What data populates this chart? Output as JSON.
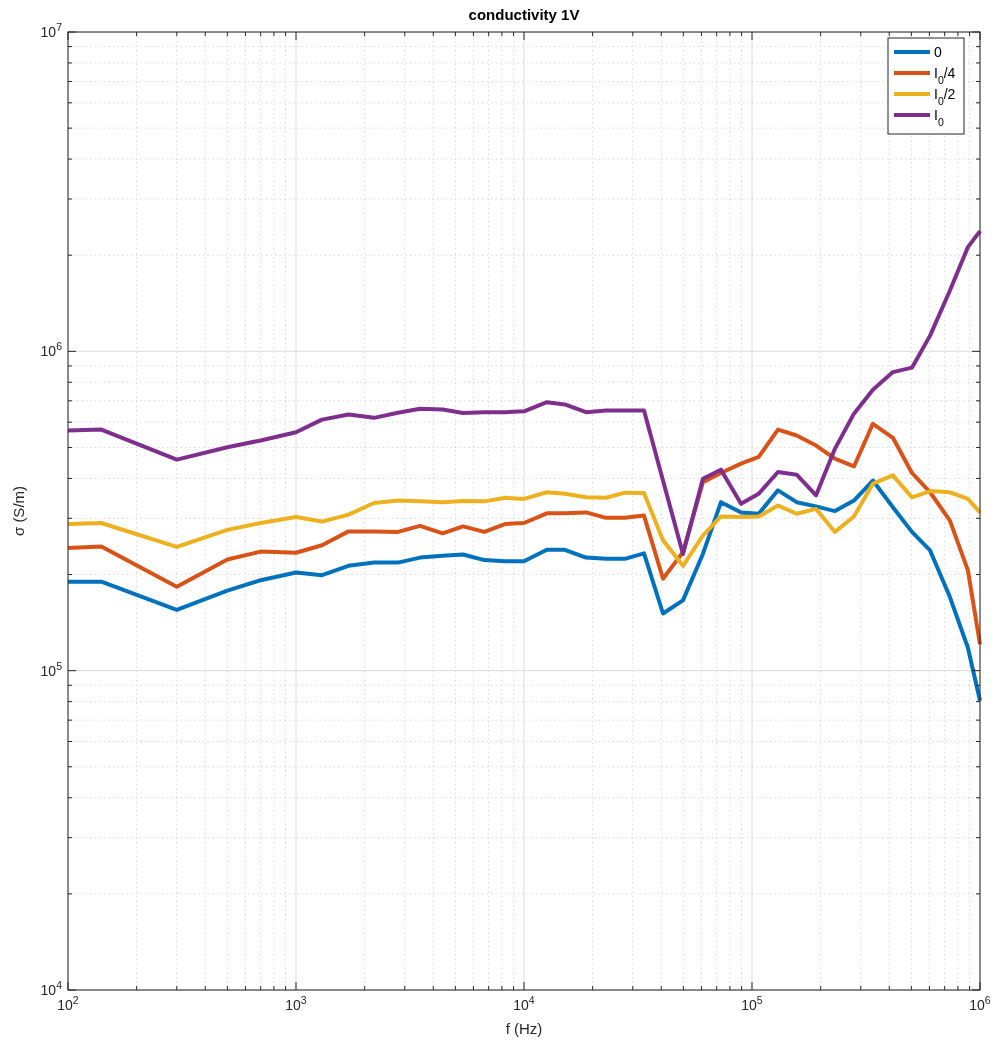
{
  "chart_data": {
    "type": "line",
    "title": "conductivity 1V",
    "xlabel": "f (Hz)",
    "ylabel": "σ (S/m)",
    "log": "xy",
    "grid": true,
    "legend": "top right",
    "line_style": "solid",
    "xlim": [
      100,
      1000000
    ],
    "ylim": [
      10000,
      10000000
    ],
    "xticks": [
      {
        "value": 100,
        "label": "10$^{2}$"
      },
      {
        "value": 200,
        "label": null
      },
      {
        "value": 300,
        "label": null
      },
      {
        "value": 400,
        "label": null
      },
      {
        "value": 500,
        "label": null
      },
      {
        "value": 600,
        "label": null
      },
      {
        "value": 700,
        "label": null
      },
      {
        "value": 800,
        "label": null
      },
      {
        "value": 900,
        "label": null
      },
      {
        "value": 1000,
        "label": "10$^{3}$"
      },
      {
        "value": 2000,
        "label": null
      },
      {
        "value": 3000,
        "label": null
      },
      {
        "value": 4000,
        "label": null
      },
      {
        "value": 5000,
        "label": null
      },
      {
        "value": 6000,
        "label": null
      },
      {
        "value": 7000,
        "label": null
      },
      {
        "value": 8000,
        "label": null
      },
      {
        "value": 9000,
        "label": null
      },
      {
        "value": 10000,
        "label": "10$^{4}$"
      },
      {
        "value": 20000,
        "label": null
      },
      {
        "value": 30000,
        "label": null
      },
      {
        "value": 40000,
        "label": null
      },
      {
        "value": 50000,
        "label": null
      },
      {
        "value": 60000,
        "label": null
      },
      {
        "value": 70000,
        "label": null
      },
      {
        "value": 80000,
        "label": null
      },
      {
        "value": 90000,
        "label": null
      },
      {
        "value": 100000,
        "label": "10$^{5}$"
      },
      {
        "value": 200000,
        "label": null
      },
      {
        "value": 300000,
        "label": null
      },
      {
        "value": 400000,
        "label": null
      },
      {
        "value": 500000,
        "label": null
      },
      {
        "value": 600000,
        "label": null
      },
      {
        "value": 700000,
        "label": null
      },
      {
        "value": 800000,
        "label": null
      },
      {
        "value": 900000,
        "label": null
      },
      {
        "value": 1000000,
        "label": "10$^{6}$"
      }
    ],
    "yticks": [
      {
        "value": 10000,
        "label": "10$^{4}$"
      },
      {
        "value": 20000,
        "label": null
      },
      {
        "value": 30000,
        "label": null
      },
      {
        "value": 40000,
        "label": null
      },
      {
        "value": 50000,
        "label": null
      },
      {
        "value": 60000,
        "label": null
      },
      {
        "value": 70000,
        "label": null
      },
      {
        "value": 80000,
        "label": null
      },
      {
        "value": 90000,
        "label": null
      },
      {
        "value": 100000,
        "label": "10$^{5}$"
      },
      {
        "value": 200000,
        "label": null
      },
      {
        "value": 300000,
        "label": null
      },
      {
        "value": 400000,
        "label": null
      },
      {
        "value": 500000,
        "label": null
      },
      {
        "value": 600000,
        "label": null
      },
      {
        "value": 700000,
        "label": null
      },
      {
        "value": 800000,
        "label": null
      },
      {
        "value": 900000,
        "label": null
      },
      {
        "value": 1000000,
        "label": "10$^{6}$"
      },
      {
        "value": 2000000,
        "label": null
      },
      {
        "value": 3000000,
        "label": null
      },
      {
        "value": 4000000,
        "label": null
      },
      {
        "value": 5000000,
        "label": null
      },
      {
        "value": 6000000,
        "label": null
      },
      {
        "value": 7000000,
        "label": null
      },
      {
        "value": 8000000,
        "label": null
      },
      {
        "value": 9000000,
        "label": null
      },
      {
        "value": 10000000,
        "label": "10$^{7}$"
      }
    ],
    "x": [
      100,
      140,
      300,
      500,
      700,
      1000,
      1300,
      1700,
      2200,
      2800,
      3500,
      4400,
      5400,
      6700,
      8300,
      10000,
      12600,
      15100,
      18700,
      22900,
      27700,
      33600,
      40700,
      49800,
      60900,
      73100,
      89500,
      107000,
      130000,
      157000,
      191000,
      231000,
      280000,
      339000,
      415000,
      503000,
      604000,
      738000,
      885000,
      1000000
    ],
    "series": [
      {
        "name": "0",
        "color": "#0072bd",
        "values": [
          190000,
          190000,
          155000,
          178000,
          192000,
          203000,
          199000,
          213000,
          218000,
          218000,
          226000,
          229000,
          231000,
          222000,
          220000,
          220000,
          239000,
          239000,
          226000,
          224000,
          224000,
          233000,
          151000,
          166000,
          232000,
          337000,
          313000,
          310000,
          367000,
          337000,
          327000,
          316000,
          341000,
          394000,
          325000,
          272000,
          238000,
          170000,
          118000,
          80500
        ]
      },
      {
        "name": "I$_{0}$/4",
        "color": "#d95319",
        "values": [
          242000,
          245000,
          183000,
          223000,
          236000,
          234000,
          247000,
          273000,
          273000,
          272000,
          284000,
          269000,
          283000,
          272000,
          288000,
          290000,
          311000,
          311000,
          313000,
          301000,
          301000,
          306000,
          194000,
          235000,
          389000,
          416000,
          445000,
          467000,
          569000,
          545000,
          507000,
          461000,
          436000,
          593000,
          536000,
          416000,
          362000,
          295000,
          206000,
          121000
        ]
      },
      {
        "name": "I$_{0}$/2",
        "color": "#edb120",
        "values": [
          288000,
          290000,
          244000,
          276000,
          290000,
          303000,
          293000,
          308000,
          335000,
          341000,
          339000,
          337000,
          340000,
          339000,
          348000,
          345000,
          362000,
          358000,
          349000,
          348000,
          361000,
          360000,
          256000,
          213000,
          265000,
          304000,
          303000,
          304000,
          329000,
          310000,
          321000,
          272000,
          304000,
          385000,
          409000,
          349000,
          365000,
          362000,
          345000,
          313000
        ]
      },
      {
        "name": "I$_{0}$",
        "color": "#7e2f8e",
        "values": [
          565000,
          569000,
          458000,
          501000,
          526000,
          558000,
          611000,
          634000,
          619000,
          642000,
          661000,
          657000,
          641000,
          645000,
          645000,
          649000,
          693000,
          682000,
          645000,
          653000,
          653000,
          653000,
          394000,
          232000,
          399000,
          426000,
          333000,
          358000,
          419000,
          411000,
          354000,
          495000,
          638000,
          758000,
          861000,
          889000,
          1120000,
          1550000,
          2120000,
          2380000
        ]
      }
    ]
  }
}
